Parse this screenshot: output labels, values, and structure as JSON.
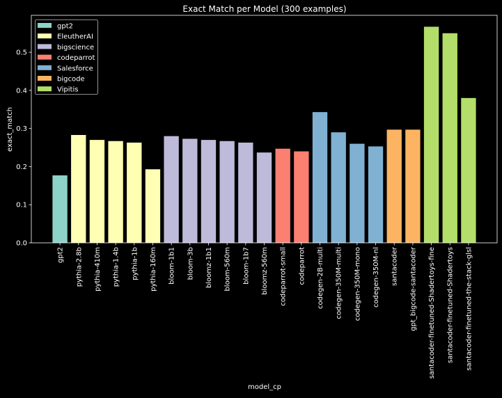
{
  "chart_data": {
    "type": "bar",
    "title": "Exact Match per Model (300 examples)",
    "xlabel": "model_cp",
    "ylabel": "exact_match",
    "ylim": [
      0,
      0.597
    ],
    "yticks": [
      "0.0",
      "0.1",
      "0.2",
      "0.3",
      "0.4",
      "0.5"
    ],
    "grid": false,
    "legend_placement": "top-left",
    "groups": [
      {
        "name": "gpt2",
        "color": "#8dd3c7"
      },
      {
        "name": "EleutherAI",
        "color": "#ffffb3"
      },
      {
        "name": "bigscience",
        "color": "#bebada"
      },
      {
        "name": "codeparrot",
        "color": "#fb8072"
      },
      {
        "name": "Salesforce",
        "color": "#80b1d3"
      },
      {
        "name": "bigcode",
        "color": "#fdb462"
      },
      {
        "name": "Vipitis",
        "color": "#b3de69"
      }
    ],
    "categories": [
      "gpt2",
      "pythia-2.8b",
      "pythia-410m",
      "pythia-1.4b",
      "pythia-1b",
      "pythia-160m",
      "bloom-1b1",
      "bloom-3b",
      "bloomz-1b1",
      "bloom-560m",
      "bloom-1b7",
      "bloomz-560m",
      "codeparrot-small",
      "codeparrot",
      "codegen-2B-multi",
      "codegen-350M-multi",
      "codegen-350M-mono",
      "codegen-350M-nl",
      "santacoder",
      "gpt_bigcode-santacoder",
      "santacoder-finetuned-Shadertoys-fine",
      "santacoder-finetuned-Shadertoys",
      "santacoder-finetuned-the-stack-glsl"
    ],
    "group_of": [
      0,
      1,
      1,
      1,
      1,
      1,
      2,
      2,
      2,
      2,
      2,
      2,
      3,
      3,
      4,
      4,
      4,
      4,
      5,
      5,
      6,
      6,
      6
    ],
    "values": [
      0.177,
      0.283,
      0.27,
      0.267,
      0.263,
      0.193,
      0.28,
      0.273,
      0.27,
      0.267,
      0.263,
      0.237,
      0.247,
      0.24,
      0.343,
      0.29,
      0.26,
      0.253,
      0.297,
      0.297,
      0.567,
      0.55,
      0.38
    ]
  }
}
